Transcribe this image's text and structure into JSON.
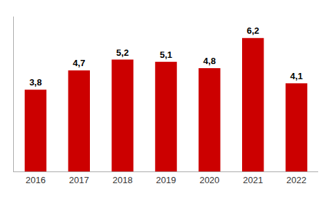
{
  "chart_data": {
    "type": "bar",
    "categories": [
      "2016",
      "2017",
      "2018",
      "2019",
      "2020",
      "2021",
      "2022"
    ],
    "values": [
      3.8,
      4.7,
      5.2,
      5.1,
      4.8,
      6.2,
      4.1
    ],
    "value_labels": [
      "3,8",
      "4,7",
      "5,2",
      "5,1",
      "4,8",
      "6,2",
      "4,1"
    ],
    "color": "#cc0000",
    "ylim": [
      0,
      7.2
    ],
    "grid": false,
    "data_labels": true,
    "tick_labels": "x"
  }
}
